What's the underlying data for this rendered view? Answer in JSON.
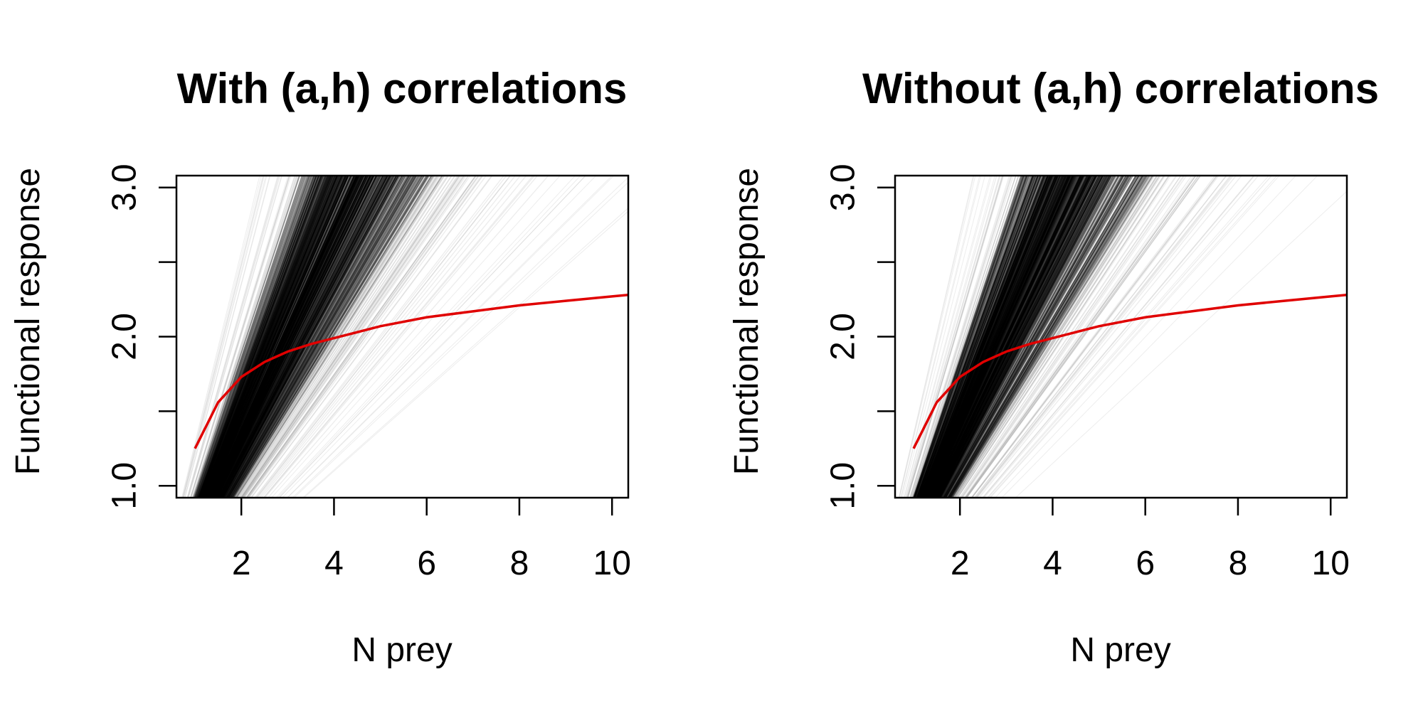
{
  "chart_data": [
    {
      "type": "line",
      "title": "With (a,h) correlations",
      "xlabel": "N prey",
      "ylabel": "Functional response",
      "xlim": [
        0.6,
        10.35
      ],
      "ylim": [
        0.92,
        3.08
      ],
      "xticks": [
        2,
        4,
        6,
        8,
        10
      ],
      "yticks": [
        1.0,
        1.5,
        2.0,
        2.5,
        3.0
      ],
      "ytick_labels": [
        "1.0",
        "",
        "2.0",
        "",
        "3.0"
      ],
      "grid": false,
      "series": [
        {
          "color": "#e00000",
          "x": [
            1,
            1.5,
            2,
            2.5,
            3,
            3.5,
            4,
            5,
            6,
            7,
            8,
            9,
            10,
            10.35
          ],
          "y": [
            1.25,
            1.56,
            1.73,
            1.83,
            1.9,
            1.95,
            1.99,
            2.07,
            2.13,
            2.17,
            2.21,
            2.24,
            2.27,
            2.28
          ]
        }
      ],
      "sample_lines": {
        "color": "#000000",
        "description_slope_range": [
          0.35,
          1.25
        ]
      }
    },
    {
      "type": "line",
      "title": "Without (a,h) correlations",
      "xlabel": "N prey",
      "ylabel": "Functional response",
      "xlim": [
        0.6,
        10.35
      ],
      "ylim": [
        0.92,
        3.08
      ],
      "xticks": [
        2,
        4,
        6,
        8,
        10
      ],
      "yticks": [
        1.0,
        1.5,
        2.0,
        2.5,
        3.0
      ],
      "ytick_labels": [
        "1.0",
        "",
        "2.0",
        "",
        "3.0"
      ],
      "grid": false,
      "series": [
        {
          "color": "#e00000",
          "x": [
            1,
            1.5,
            2,
            2.5,
            3,
            3.5,
            4,
            5,
            6,
            7,
            8,
            9,
            10,
            10.35
          ],
          "y": [
            1.25,
            1.56,
            1.73,
            1.83,
            1.9,
            1.95,
            1.99,
            2.07,
            2.13,
            2.17,
            2.21,
            2.24,
            2.27,
            2.28
          ]
        }
      ],
      "sample_lines": {
        "color": "#000000",
        "description_slope_range": [
          0.35,
          1.25
        ]
      }
    }
  ]
}
